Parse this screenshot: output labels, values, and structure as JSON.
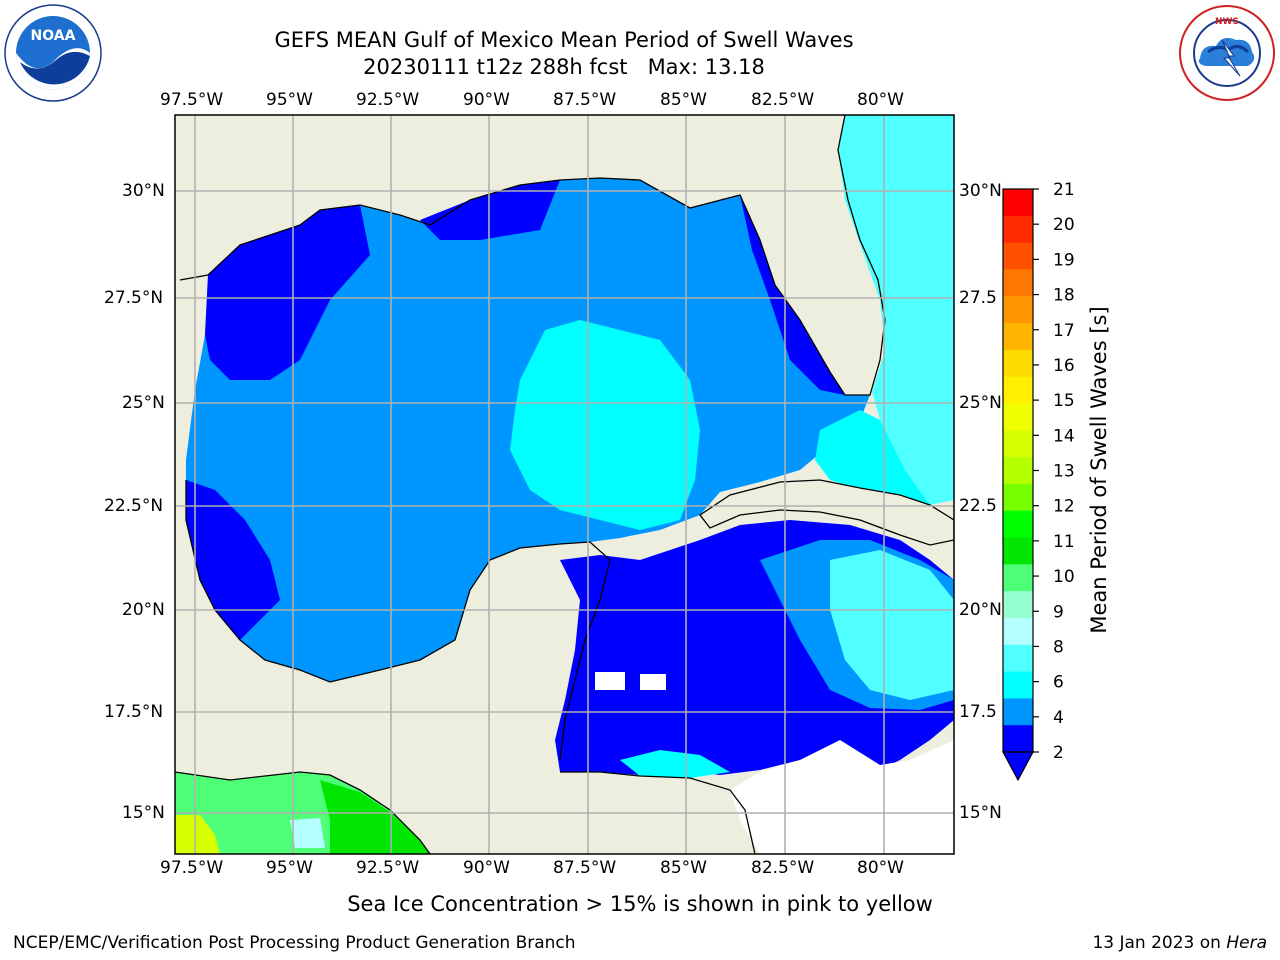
{
  "header": {
    "title_line1": "GEFS MEAN Gulf of Mexico Mean Period of Swell Waves",
    "title_line2": "20230111 t12z 288h fcst",
    "max_label": "Max: 13.18"
  },
  "logos": {
    "left": {
      "icon": "noaa-logo",
      "text": "NOAA",
      "ring_text": "NATIONAL OCEANIC AND ATMOSPHERIC ADMINISTRATION · U.S. DEPARTMENT OF COMMERCE"
    },
    "right": {
      "icon": "nws-logo",
      "ring_text": "NATIONAL WEATHER SERVICE"
    }
  },
  "map": {
    "lon_ticks": [
      "97.5°W",
      "95°W",
      "92.5°W",
      "90°W",
      "87.5°W",
      "85°W",
      "82.5°W",
      "80°W"
    ],
    "lat_ticks_left": [
      "30°N",
      "27.5°N",
      "25°N",
      "22.5°N",
      "20°N",
      "17.5°N",
      "15°N"
    ],
    "lat_ticks_right": [
      "30°N",
      "27.5",
      "25°N",
      "22.5",
      "20°N",
      "17.5",
      "15°N"
    ],
    "colors": {
      "land": "#eeeedf",
      "coast": "#000000",
      "grid": "#b0b0b0",
      "nodata": "#ffffff"
    }
  },
  "colorbar": {
    "label": "Mean Period of Swell Waves [s]",
    "ticks": [
      "21",
      "20",
      "19",
      "18",
      "17",
      "16",
      "15",
      "14",
      "13",
      "12",
      "11",
      "10",
      "9",
      "8",
      "6",
      "4",
      "2"
    ],
    "colors": [
      "#ff0000",
      "#ff2a00",
      "#ff5000",
      "#ff7800",
      "#ff9600",
      "#ffb400",
      "#ffdc00",
      "#fff000",
      "#f0ff00",
      "#d7ff00",
      "#b4ff00",
      "#78ff00",
      "#00ff00",
      "#00e600",
      "#50ff78",
      "#96ffd2",
      "#b4ffff",
      "#50ffff",
      "#00ffff",
      "#0096ff",
      "#0000ff"
    ],
    "under_color": "#0000ff"
  },
  "footer": {
    "note": "Sea Ice Concentration > 15% is shown in pink to yellow",
    "credit": "NCEP/EMC/Verification Post Processing Product Generation Branch",
    "date": "13 Jan 2023 on",
    "machine": "Hera"
  }
}
